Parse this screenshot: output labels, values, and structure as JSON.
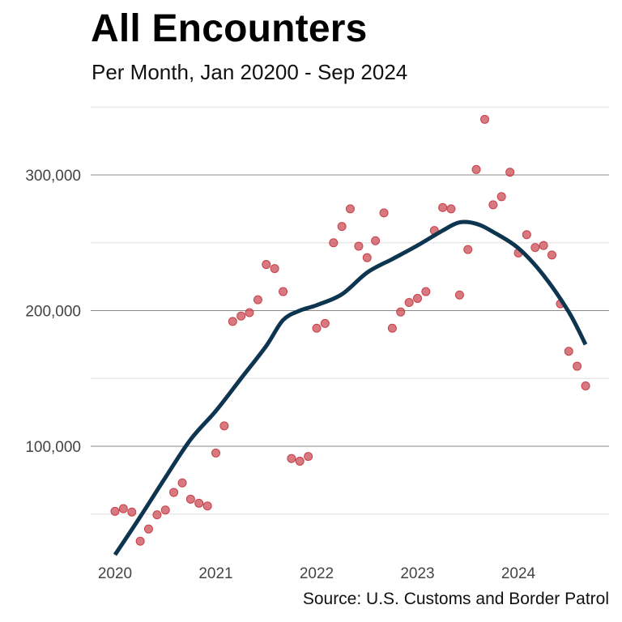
{
  "chart_data": {
    "type": "scatter",
    "title": "All Encounters",
    "subtitle": "Per Month, Jan 20200 - Sep 2024",
    "source": "Source: U.S. Customs and Border Patrol",
    "xlabel": "",
    "ylabel": "",
    "xlim": [
      2019.85,
      2024.95
    ],
    "ylim": [
      20000,
      355000
    ],
    "x_ticks": [
      2020,
      2021,
      2022,
      2023,
      2024
    ],
    "x_tick_labels": [
      "2020",
      "2021",
      "2022",
      "2023",
      "2024"
    ],
    "y_ticks": [
      100000,
      200000,
      300000
    ],
    "y_tick_labels": [
      "100,000",
      "200,000",
      "300,000"
    ],
    "y_minor_gridlines": [
      50000,
      150000,
      250000,
      350000
    ],
    "grid": true,
    "colors": {
      "points": "#c8404a",
      "trend": "#0d3550",
      "major_grid": "#8a8a8a",
      "minor_grid": "#dddddd"
    },
    "series": [
      {
        "points": [
          [
            2020.0,
            52000
          ],
          [
            2020.083,
            54000
          ],
          [
            2020.167,
            51500
          ],
          [
            2020.25,
            30000
          ],
          [
            2020.333,
            39000
          ],
          [
            2020.417,
            49500
          ],
          [
            2020.5,
            53000
          ],
          [
            2020.583,
            66000
          ],
          [
            2020.667,
            73000
          ],
          [
            2020.75,
            61000
          ],
          [
            2020.833,
            58000
          ],
          [
            2020.917,
            56000
          ],
          [
            2021.0,
            95000
          ],
          [
            2021.083,
            115000
          ],
          [
            2021.167,
            192000
          ],
          [
            2021.25,
            196000
          ],
          [
            2021.333,
            198500
          ],
          [
            2021.417,
            208000
          ],
          [
            2021.5,
            234000
          ],
          [
            2021.583,
            231000
          ],
          [
            2021.667,
            214000
          ],
          [
            2021.75,
            91000
          ],
          [
            2021.833,
            89000
          ],
          [
            2021.917,
            92500
          ],
          [
            2022.0,
            187000
          ],
          [
            2022.083,
            190500
          ],
          [
            2022.167,
            250000
          ],
          [
            2022.25,
            262000
          ],
          [
            2022.333,
            275000
          ],
          [
            2022.417,
            247500
          ],
          [
            2022.5,
            239000
          ],
          [
            2022.583,
            251500
          ],
          [
            2022.667,
            272000
          ],
          [
            2022.75,
            187000
          ],
          [
            2022.833,
            199000
          ],
          [
            2022.917,
            206000
          ],
          [
            2023.0,
            209000
          ],
          [
            2023.083,
            214000
          ],
          [
            2023.167,
            259000
          ],
          [
            2023.25,
            276000
          ],
          [
            2023.333,
            275000
          ],
          [
            2023.417,
            211500
          ],
          [
            2023.5,
            245000
          ],
          [
            2023.583,
            304000
          ],
          [
            2023.667,
            341000
          ],
          [
            2023.75,
            278000
          ],
          [
            2023.833,
            284000
          ],
          [
            2023.917,
            302000
          ],
          [
            2024.0,
            242500
          ],
          [
            2024.083,
            256000
          ],
          [
            2024.167,
            246500
          ],
          [
            2024.25,
            248000
          ],
          [
            2024.333,
            241000
          ],
          [
            2024.417,
            205000
          ],
          [
            2024.5,
            170000
          ],
          [
            2024.583,
            159000
          ],
          [
            2024.667,
            144500
          ]
        ]
      }
    ],
    "trend_line": {
      "points": [
        [
          2020.0,
          20000
        ],
        [
          2020.25,
          48000
        ],
        [
          2020.5,
          77000
        ],
        [
          2020.75,
          105000
        ],
        [
          2021.0,
          126000
        ],
        [
          2021.25,
          150000
        ],
        [
          2021.5,
          174000
        ],
        [
          2021.667,
          193000
        ],
        [
          2021.833,
          200000
        ],
        [
          2022.0,
          204000
        ],
        [
          2022.25,
          212000
        ],
        [
          2022.5,
          228000
        ],
        [
          2022.75,
          238000
        ],
        [
          2023.0,
          248000
        ],
        [
          2023.25,
          259000
        ],
        [
          2023.417,
          265000
        ],
        [
          2023.583,
          264000
        ],
        [
          2023.75,
          258000
        ],
        [
          2024.0,
          246000
        ],
        [
          2024.25,
          226000
        ],
        [
          2024.5,
          199000
        ],
        [
          2024.667,
          175000
        ]
      ]
    }
  }
}
